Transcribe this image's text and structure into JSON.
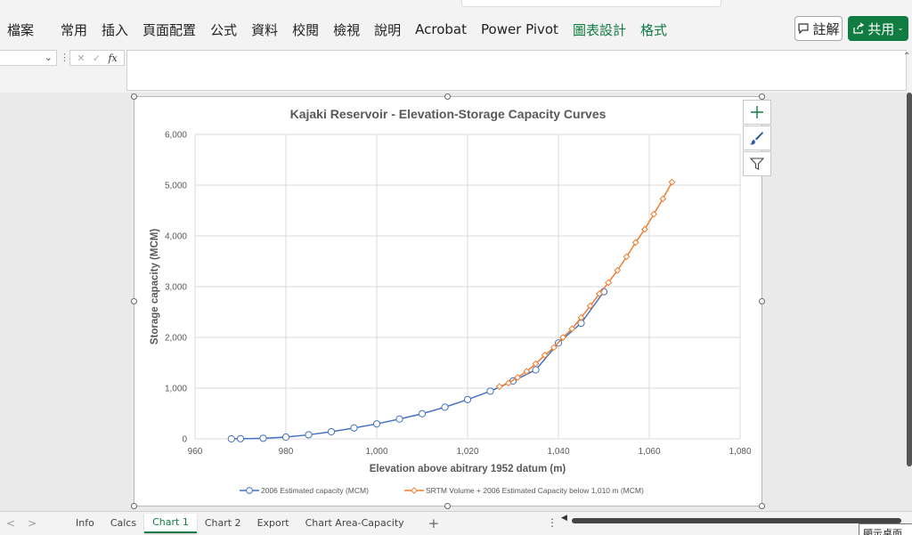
{
  "ribbon": {
    "tabs": [
      {
        "label": "檔案",
        "color": ""
      },
      {
        "label": "常用",
        "color": ""
      },
      {
        "label": "插入",
        "color": ""
      },
      {
        "label": "頁面配置",
        "color": ""
      },
      {
        "label": "公式",
        "color": ""
      },
      {
        "label": "資料",
        "color": ""
      },
      {
        "label": "校閱",
        "color": ""
      },
      {
        "label": "檢視",
        "color": ""
      },
      {
        "label": "說明",
        "color": ""
      },
      {
        "label": "Acrobat",
        "color": ""
      },
      {
        "label": "Power Pivot",
        "color": ""
      },
      {
        "label": "圖表設計",
        "color": "green"
      },
      {
        "label": "格式",
        "color": "green"
      }
    ],
    "comment_label": "註解",
    "share_label": "共用",
    "accent": "#107c41"
  },
  "formula_bar": {
    "fx_label": "fx",
    "value": ""
  },
  "chart_buttons": [
    "plus-icon",
    "brush-icon",
    "filter-icon"
  ],
  "chart_data": {
    "type": "scatter",
    "title": "Kajaki Reservoir - Elevation-Storage Capacity Curves",
    "xlabel": "Elevation above abitrary 1952 datum (m)",
    "ylabel": "Storage capacity (MCM)",
    "xlim": [
      960,
      1080
    ],
    "ylim": [
      0,
      6000
    ],
    "xticks": [
      "960",
      "980",
      "1,000",
      "1,020",
      "1,040",
      "1,060",
      "1,080"
    ],
    "yticks": [
      "0",
      "1,000",
      "2,000",
      "3,000",
      "4,000",
      "5,000",
      "6,000"
    ],
    "grid": true,
    "legend_position": "bottom",
    "series": [
      {
        "name": "2006 Estimated capacity (MCM)",
        "color": "#4472c4",
        "marker": "circle",
        "x": [
          968,
          970,
          975,
          980,
          985,
          990,
          995,
          1000,
          1005,
          1010,
          1015,
          1020,
          1025,
          1030,
          1035,
          1040,
          1045,
          1050
        ],
        "y": [
          0,
          3,
          12,
          35,
          80,
          140,
          215,
          295,
          390,
          495,
          625,
          775,
          940,
          1140,
          1360,
          1890,
          2280,
          2900
        ]
      },
      {
        "name": "SRTM Volume + 2006 Estimated Capacity below 1,010 m (MCM)",
        "color": "#ed7d31",
        "marker": "diamond",
        "x": [
          1027,
          1029,
          1031,
          1033,
          1035,
          1037,
          1039,
          1041,
          1043,
          1045,
          1047,
          1049,
          1051,
          1053,
          1055,
          1057,
          1059,
          1061,
          1063,
          1065
        ],
        "y": [
          1030,
          1100,
          1210,
          1330,
          1480,
          1650,
          1800,
          2000,
          2170,
          2390,
          2620,
          2860,
          3080,
          3320,
          3590,
          3870,
          4130,
          4430,
          4730,
          5060
        ]
      }
    ]
  },
  "sheet_tabs": {
    "nav_prev": "<",
    "nav_next": ">",
    "tabs": [
      "Info",
      "Calcs",
      "Chart 1",
      "Chart 2",
      "Export",
      "Chart Area-Capacity"
    ],
    "active": "Chart 1",
    "add_label": "+",
    "more_label": "⋮"
  },
  "tooltip": "顯示桌面"
}
